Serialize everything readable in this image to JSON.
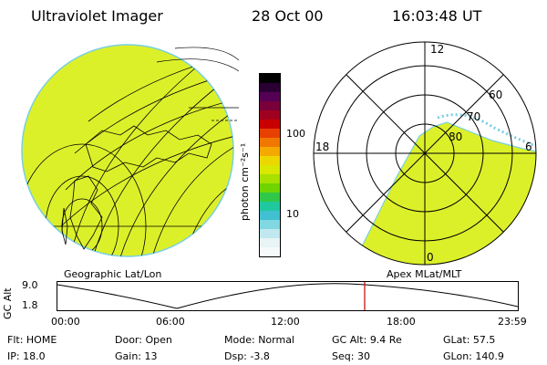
{
  "header": {
    "instrument": "Ultraviolet Imager",
    "date": "28 Oct 00",
    "time": "16:03:48 UT"
  },
  "colorbar": {
    "unit_label": "photon cm⁻²s⁻¹",
    "tick_100": "100",
    "tick_10": "10",
    "colors": [
      "#000000",
      "#2a0033",
      "#550055",
      "#7a003a",
      "#a00020",
      "#c80000",
      "#e84000",
      "#f07800",
      "#f4a800",
      "#ecd800",
      "#d8e800",
      "#a8e000",
      "#70d400",
      "#30c848",
      "#20c8a0",
      "#40c0d0",
      "#80d8e0",
      "#c0e8ee",
      "#e8f4f6",
      "#f6fafa"
    ]
  },
  "left_panel": {
    "caption": "Geographic Lat/Lon",
    "fill_color": "#dcf02a"
  },
  "right_panel": {
    "caption": "Apex MLat/MLT",
    "mlt_top": "12",
    "mlt_bottom": "0",
    "mlt_left": "18",
    "mlt_right": "6",
    "lat_60": "60",
    "lat_70": "70",
    "lat_80": "80"
  },
  "altitude_plot": {
    "axis_label": "GC Alt",
    "y_top": "9.0",
    "y_bottom": "1.8",
    "marker_color": "#c00000",
    "time_ticks": [
      "00:00",
      "06:00",
      "12:00",
      "18:00",
      "23:59"
    ]
  },
  "status": {
    "flt_label": "Flt:",
    "flt_value": "HOME",
    "ip_label": "IP:",
    "ip_value": "18.0",
    "door_label": "Door:",
    "door_value": "Open",
    "gain_label": "Gain:",
    "gain_value": "13",
    "mode_label": "Mode:",
    "mode_value": "Normal",
    "dsp_label": "Dsp:",
    "dsp_value": "-3.8",
    "gcalt_label": "GC Alt:",
    "gcalt_value": "9.4 Re",
    "seq_label": "Seq:",
    "seq_value": "30",
    "glat_label": "GLat:",
    "glat_value": "57.5",
    "glon_label": "GLon:",
    "glon_value": "140.9"
  }
}
